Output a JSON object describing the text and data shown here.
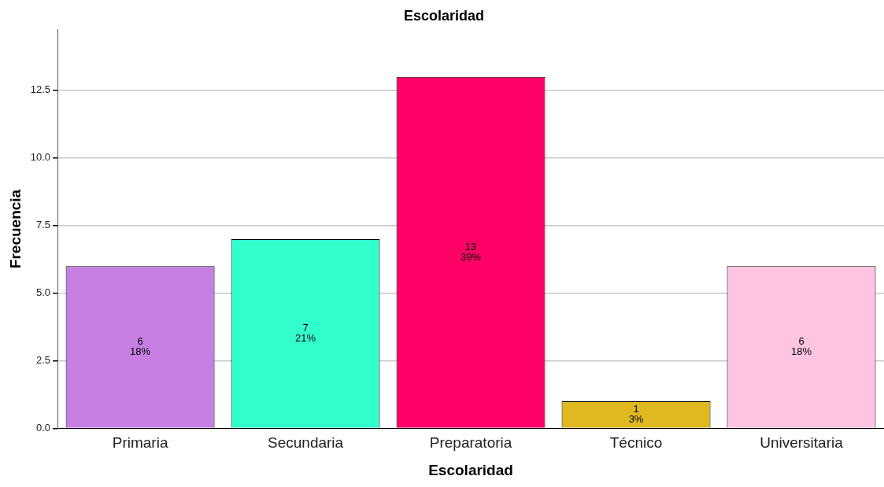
{
  "chart_data": {
    "type": "bar",
    "title": "Escolaridad",
    "xlabel": "Escolaridad",
    "ylabel": "Frecuencia",
    "categories": [
      "Primaria",
      "Secundaria",
      "Preparatoria",
      "Técnico",
      "Universitaria"
    ],
    "values": [
      6,
      7,
      13,
      1,
      6
    ],
    "colors": [
      "#c77fe3",
      "#33ffcc",
      "#ff0066",
      "#e0b81f",
      "#ffc4e1"
    ],
    "value_labels": [
      "6\n18%",
      "7\n21%",
      "13\n39%",
      "1\n3%",
      "6\n18%"
    ],
    "ylim": [
      0,
      14.75
    ],
    "yticks": [
      {
        "value": 0,
        "label": "0.0"
      },
      {
        "value": 2.5,
        "label": "2.5"
      },
      {
        "value": 5,
        "label": "5.0"
      },
      {
        "value": 7.5,
        "label": "7.5"
      },
      {
        "value": 10,
        "label": "10.0"
      },
      {
        "value": 12.5,
        "label": "12.5"
      }
    ],
    "grid": "y",
    "legend": false
  }
}
